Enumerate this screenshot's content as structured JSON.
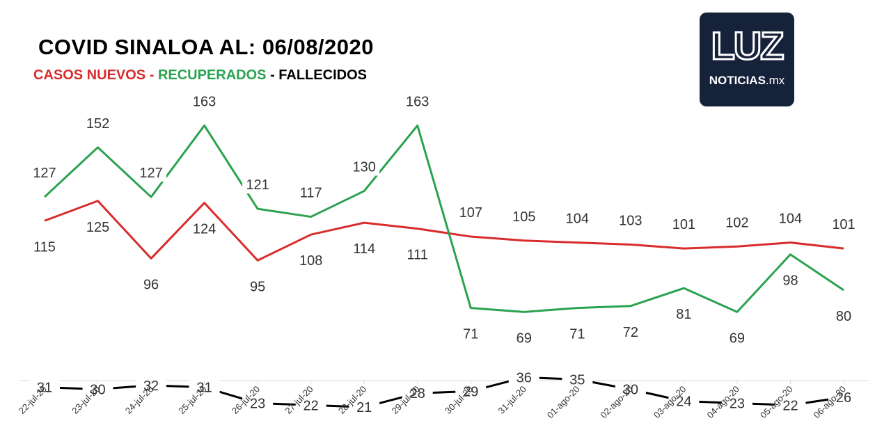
{
  "chart_data": {
    "type": "line",
    "title": "COVID SINALOA AL: 06/08/2020",
    "x": [
      "22-jul-20",
      "23-jul-20",
      "24-jul-20",
      "25-jul-20",
      "26-jul-20",
      "27-jul-20",
      "28-jul-20",
      "29-jul-20",
      "30-jul-20",
      "31-jul-20",
      "01-ago-20",
      "02-ago-20",
      "03-ago-20",
      "04-ago-20",
      "05-ago-20",
      "06-ago-20"
    ],
    "series": [
      {
        "name": "CASOS NUEVOS",
        "color": "#d92b2b",
        "values": [
          115,
          125,
          96,
          124,
          95,
          108,
          114,
          111,
          107,
          105,
          104,
          103,
          101,
          102,
          104,
          101
        ]
      },
      {
        "name": "RECUPERADOS",
        "color": "#2aa24f",
        "values": [
          127,
          152,
          127,
          163,
          121,
          117,
          130,
          163,
          71,
          69,
          71,
          72,
          81,
          69,
          98,
          80
        ]
      },
      {
        "name": "FALLECIDOS",
        "color": "#000000",
        "values": [
          31,
          30,
          32,
          31,
          23,
          22,
          21,
          28,
          29,
          36,
          35,
          30,
          24,
          23,
          22,
          26
        ]
      }
    ],
    "grid": false,
    "legend": "top-left"
  },
  "logo": {
    "mark": "LUZ",
    "name": "NOTICIAS",
    "tld": ".mx"
  }
}
